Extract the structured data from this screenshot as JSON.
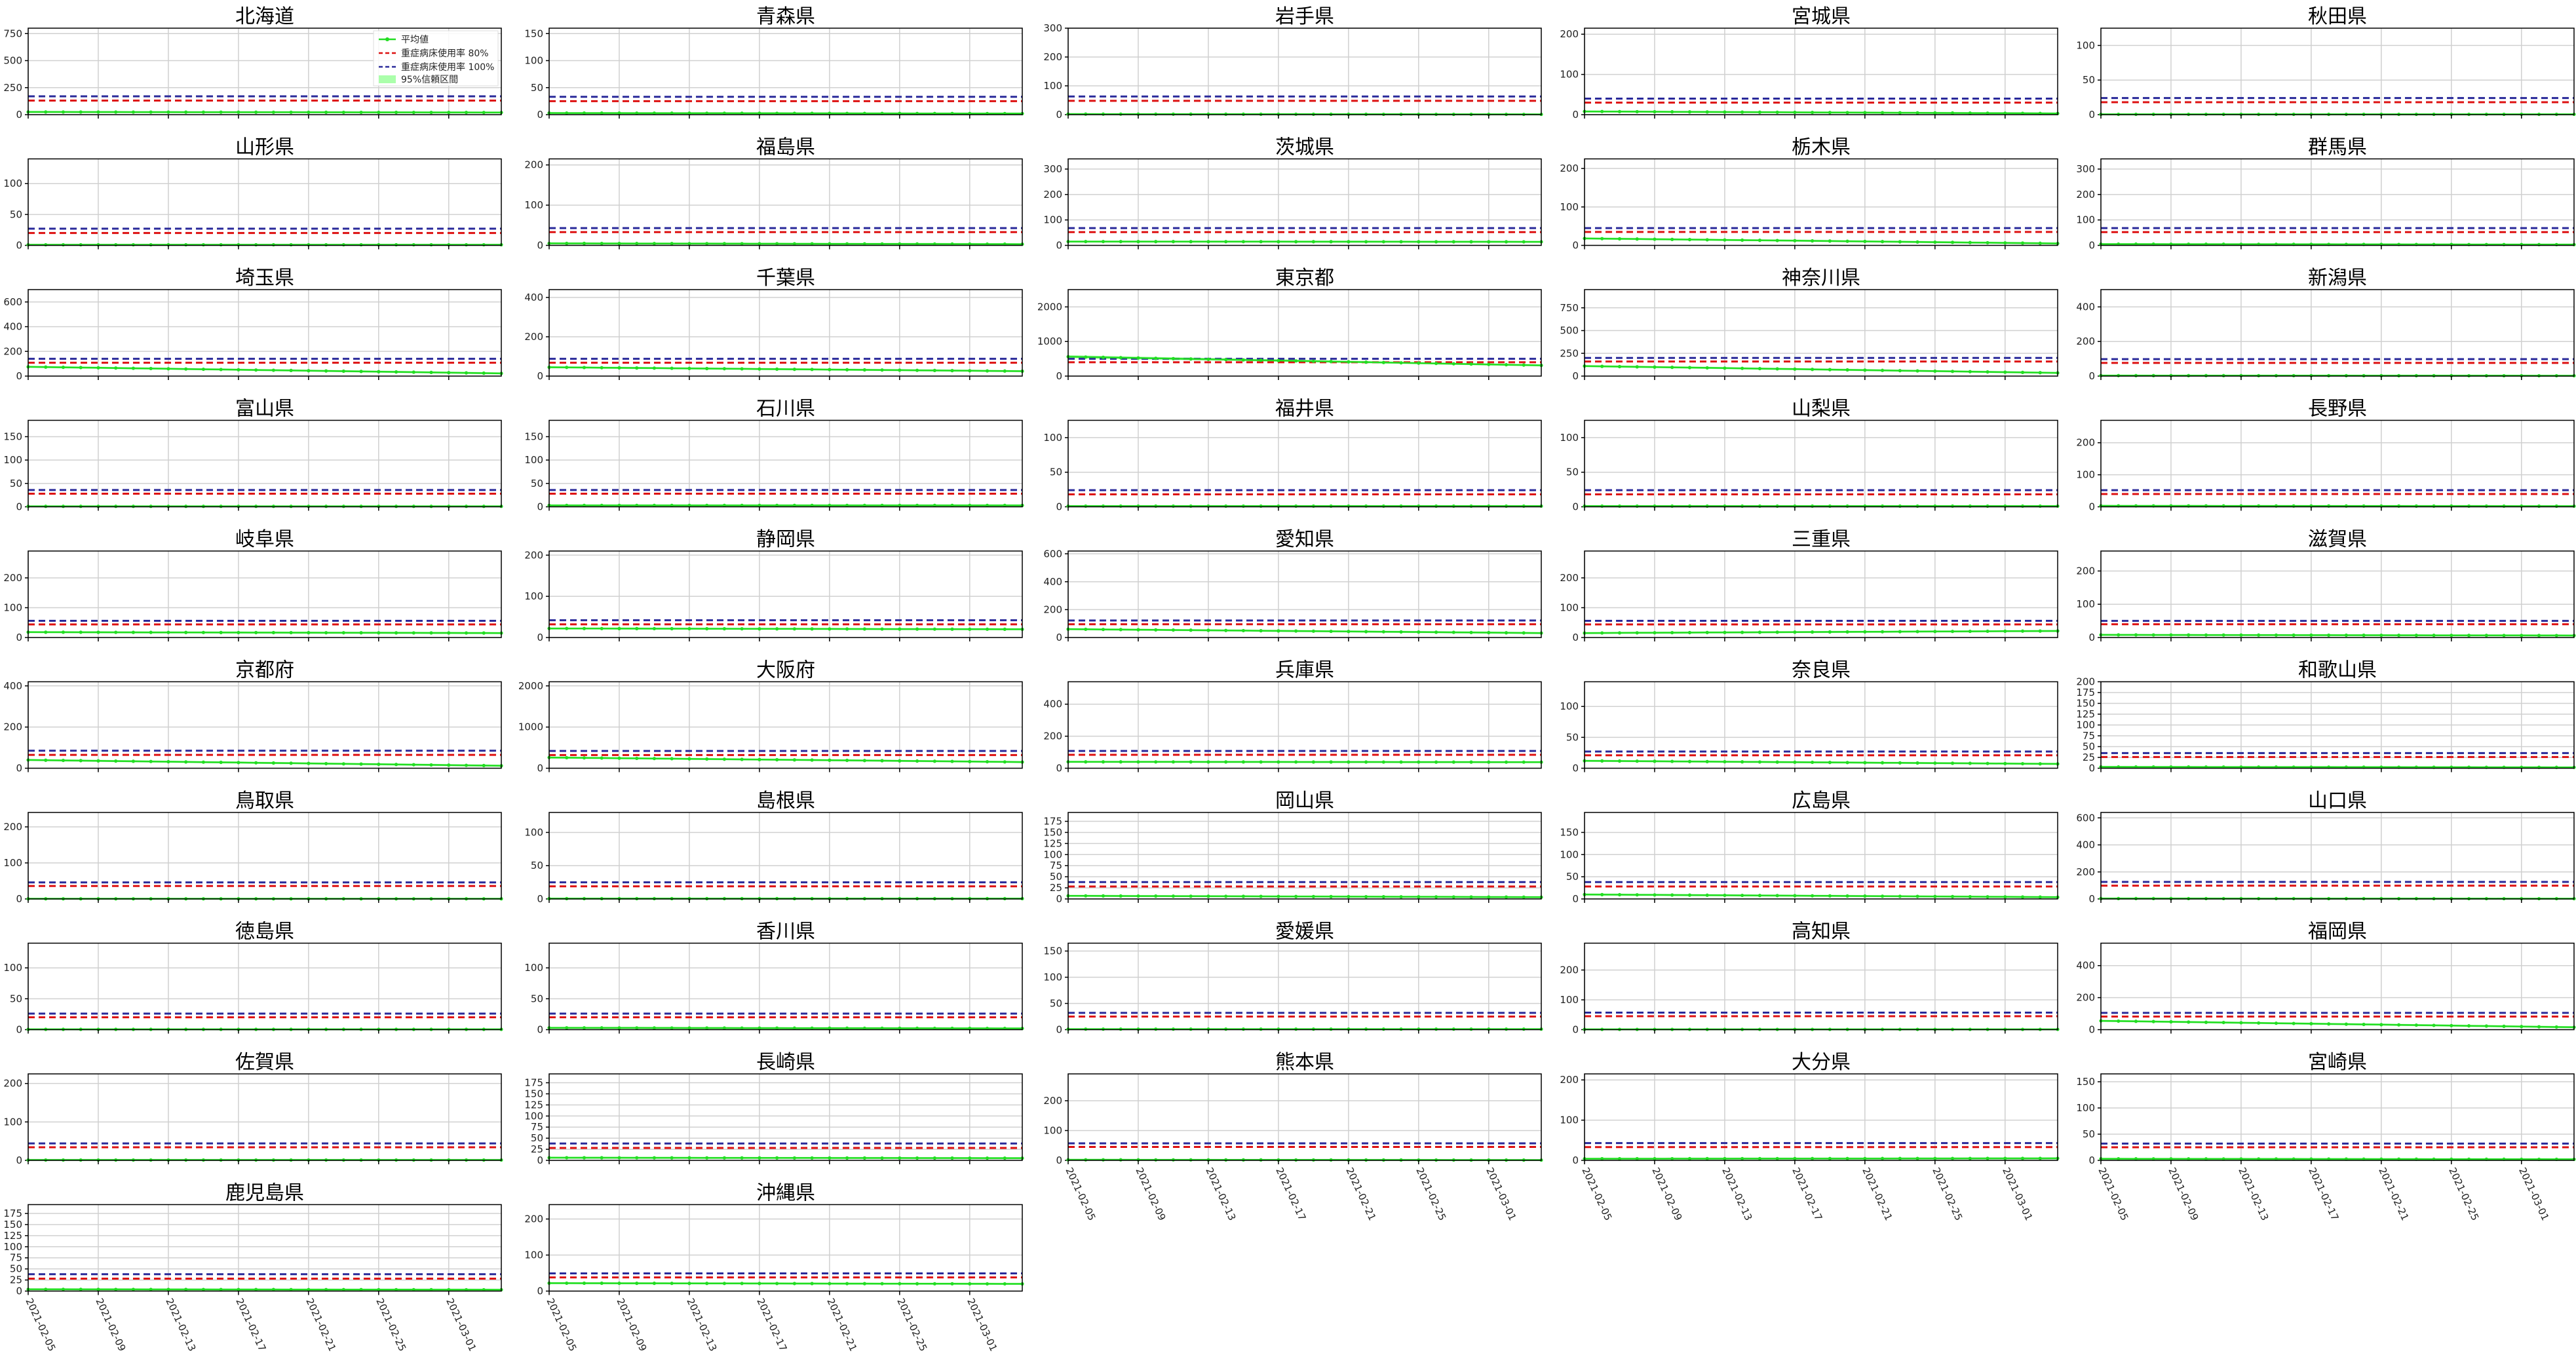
{
  "chart_data": {
    "type": "line",
    "layout": "small-multiples-grid",
    "x_dates": [
      "2021-02-05",
      "2021-02-06",
      "2021-02-07",
      "2021-02-08",
      "2021-02-09",
      "2021-02-10",
      "2021-02-11",
      "2021-02-12",
      "2021-02-13",
      "2021-02-14",
      "2021-02-15",
      "2021-02-16",
      "2021-02-17",
      "2021-02-18",
      "2021-02-19",
      "2021-02-20",
      "2021-02-21",
      "2021-02-22",
      "2021-02-23",
      "2021-02-24",
      "2021-02-25",
      "2021-02-26",
      "2021-02-27",
      "2021-02-28",
      "2021-03-01",
      "2021-03-02",
      "2021-03-03",
      "2021-03-04"
    ],
    "x_tick_labels": [
      "2021-02-05",
      "2021-02-09",
      "2021-02-13",
      "2021-02-17",
      "2021-02-21",
      "2021-02-25",
      "2021-03-01"
    ],
    "legend": {
      "placement": "top-right of first panel",
      "entries": [
        "平均値",
        "重症病床使用率 80%",
        "重症病床使用率 100%",
        "95%信頼区間"
      ]
    },
    "colors": {
      "mean_line": "#22dd22",
      "ci_band": "#88ff88",
      "threshold_80": "#dd1111",
      "threshold_100": "#2a2a9a",
      "grid": "#d0d0d0",
      "axes": "#000000"
    },
    "grid": true,
    "panels": [
      {
        "name": "北海道",
        "ymax": 800,
        "yticks": [
          0,
          250,
          500,
          750
        ],
        "cap80": 130,
        "cap100": 170,
        "start": 25,
        "end": 20
      },
      {
        "name": "青森県",
        "ymax": 160,
        "yticks": [
          0,
          50,
          100,
          150
        ],
        "cap80": 25,
        "cap100": 33,
        "start": 3,
        "end": 2
      },
      {
        "name": "岩手県",
        "ymax": 300,
        "yticks": [
          0,
          100,
          200,
          300
        ],
        "cap80": 48,
        "cap100": 63,
        "start": 2,
        "end": 1
      },
      {
        "name": "宮城県",
        "ymax": 215,
        "yticks": [
          0,
          100,
          200
        ],
        "cap80": 30,
        "cap100": 40,
        "start": 8,
        "end": 3
      },
      {
        "name": "秋田県",
        "ymax": 125,
        "yticks": [
          0,
          50,
          100
        ],
        "cap80": 18,
        "cap100": 24,
        "start": 0.5,
        "end": 0.5
      },
      {
        "name": "山形県",
        "ymax": 140,
        "yticks": [
          0,
          50,
          100
        ],
        "cap80": 20,
        "cap100": 27,
        "start": 1,
        "end": 1
      },
      {
        "name": "福島県",
        "ymax": 215,
        "yticks": [
          0,
          100,
          200
        ],
        "cap80": 33,
        "cap100": 43,
        "start": 5,
        "end": 3
      },
      {
        "name": "茨城県",
        "ymax": 340,
        "yticks": [
          0,
          100,
          200,
          300
        ],
        "cap80": 52,
        "cap100": 68,
        "start": 15,
        "end": 14
      },
      {
        "name": "栃木県",
        "ymax": 225,
        "yticks": [
          0,
          100,
          200
        ],
        "cap80": 35,
        "cap100": 45,
        "start": 18,
        "end": 5
      },
      {
        "name": "群馬県",
        "ymax": 340,
        "yticks": [
          0,
          100,
          200,
          300
        ],
        "cap80": 52,
        "cap100": 68,
        "start": 5,
        "end": 3
      },
      {
        "name": "埼玉県",
        "ymax": 700,
        "yticks": [
          0,
          200,
          400,
          600
        ],
        "cap80": 108,
        "cap100": 140,
        "start": 75,
        "end": 22
      },
      {
        "name": "千葉県",
        "ymax": 440,
        "yticks": [
          0,
          200,
          400
        ],
        "cap80": 68,
        "cap100": 88,
        "start": 45,
        "end": 25
      },
      {
        "name": "東京都",
        "ymax": 2500,
        "yticks": [
          0,
          1000,
          2000
        ],
        "cap80": 400,
        "cap100": 500,
        "start": 560,
        "end": 310
      },
      {
        "name": "神奈川県",
        "ymax": 950,
        "yticks": [
          0,
          250,
          500,
          750
        ],
        "cap80": 160,
        "cap100": 200,
        "start": 110,
        "end": 35
      },
      {
        "name": "新潟県",
        "ymax": 500,
        "yticks": [
          0,
          200,
          400
        ],
        "cap80": 76,
        "cap100": 98,
        "start": 3,
        "end": 2
      },
      {
        "name": "富山県",
        "ymax": 185,
        "yticks": [
          0,
          50,
          100,
          150
        ],
        "cap80": 28,
        "cap100": 36,
        "start": 1,
        "end": 1
      },
      {
        "name": "石川県",
        "ymax": 185,
        "yticks": [
          0,
          50,
          100,
          150
        ],
        "cap80": 28,
        "cap100": 36,
        "start": 3,
        "end": 3
      },
      {
        "name": "福井県",
        "ymax": 125,
        "yticks": [
          0,
          50,
          100
        ],
        "cap80": 18,
        "cap100": 24,
        "start": 1,
        "end": 1
      },
      {
        "name": "山梨県",
        "ymax": 125,
        "yticks": [
          0,
          50,
          100
        ],
        "cap80": 18,
        "cap100": 24,
        "start": 1,
        "end": 1
      },
      {
        "name": "長野県",
        "ymax": 270,
        "yticks": [
          0,
          100,
          200
        ],
        "cap80": 40,
        "cap100": 52,
        "start": 3,
        "end": 2
      },
      {
        "name": "岐阜県",
        "ymax": 290,
        "yticks": [
          0,
          100,
          200
        ],
        "cap80": 44,
        "cap100": 56,
        "start": 18,
        "end": 15
      },
      {
        "name": "静岡県",
        "ymax": 210,
        "yticks": [
          0,
          100,
          200
        ],
        "cap80": 32,
        "cap100": 42,
        "start": 22,
        "end": 20
      },
      {
        "name": "愛知県",
        "ymax": 620,
        "yticks": [
          0,
          200,
          400,
          600
        ],
        "cap80": 95,
        "cap100": 122,
        "start": 60,
        "end": 32
      },
      {
        "name": "三重県",
        "ymax": 290,
        "yticks": [
          0,
          100,
          200
        ],
        "cap80": 44,
        "cap100": 56,
        "start": 15,
        "end": 22
      },
      {
        "name": "滋賀県",
        "ymax": 260,
        "yticks": [
          0,
          100,
          200
        ],
        "cap80": 40,
        "cap100": 50,
        "start": 8,
        "end": 6
      },
      {
        "name": "京都府",
        "ymax": 420,
        "yticks": [
          0,
          200,
          400
        ],
        "cap80": 65,
        "cap100": 85,
        "start": 40,
        "end": 12
      },
      {
        "name": "大阪府",
        "ymax": 2100,
        "yticks": [
          0,
          1000,
          2000
        ],
        "cap80": 320,
        "cap100": 420,
        "start": 260,
        "end": 150
      },
      {
        "name": "兵庫県",
        "ymax": 540,
        "yticks": [
          0,
          200,
          400
        ],
        "cap80": 84,
        "cap100": 108,
        "start": 40,
        "end": 38
      },
      {
        "name": "奈良県",
        "ymax": 140,
        "yticks": [
          0,
          50,
          100
        ],
        "cap80": 21,
        "cap100": 27,
        "start": 12,
        "end": 7
      },
      {
        "name": "和歌山県",
        "ymax": 200,
        "yticks": [
          0,
          25,
          50,
          75,
          100,
          125,
          150,
          175,
          200
        ],
        "cap80": 26,
        "cap100": 35,
        "start": 3,
        "end": 2
      },
      {
        "name": "鳥取県",
        "ymax": 240,
        "yticks": [
          0,
          100,
          200
        ],
        "cap80": 36,
        "cap100": 46,
        "start": 0.5,
        "end": 0.5
      },
      {
        "name": "島根県",
        "ymax": 130,
        "yticks": [
          0,
          50,
          100
        ],
        "cap80": 19,
        "cap100": 25,
        "start": 0.5,
        "end": 0.5
      },
      {
        "name": "岡山県",
        "ymax": 195,
        "yticks": [
          0,
          25,
          50,
          75,
          100,
          125,
          150,
          175
        ],
        "cap80": 28,
        "cap100": 38,
        "start": 7,
        "end": 4
      },
      {
        "name": "広島県",
        "ymax": 195,
        "yticks": [
          0,
          50,
          100,
          150
        ],
        "cap80": 28,
        "cap100": 38,
        "start": 10,
        "end": 4
      },
      {
        "name": "山口県",
        "ymax": 640,
        "yticks": [
          0,
          200,
          400,
          600
        ],
        "cap80": 98,
        "cap100": 126,
        "start": 3,
        "end": 2
      },
      {
        "name": "徳島県",
        "ymax": 140,
        "yticks": [
          0,
          50,
          100
        ],
        "cap80": 20,
        "cap100": 26,
        "start": 0.5,
        "end": 0.5
      },
      {
        "name": "香川県",
        "ymax": 140,
        "yticks": [
          0,
          50,
          100
        ],
        "cap80": 20,
        "cap100": 26,
        "start": 3,
        "end": 2
      },
      {
        "name": "愛媛県",
        "ymax": 165,
        "yticks": [
          0,
          50,
          100,
          150
        ],
        "cap80": 25,
        "cap100": 32,
        "start": 1,
        "end": 1
      },
      {
        "name": "高知県",
        "ymax": 290,
        "yticks": [
          0,
          100,
          200
        ],
        "cap80": 45,
        "cap100": 57,
        "start": 1,
        "end": 1
      },
      {
        "name": "福岡県",
        "ymax": 540,
        "yticks": [
          0,
          200,
          400
        ],
        "cap80": 82,
        "cap100": 105,
        "start": 55,
        "end": 15
      },
      {
        "name": "佐賀県",
        "ymax": 225,
        "yticks": [
          0,
          100,
          200
        ],
        "cap80": 34,
        "cap100": 44,
        "start": 1,
        "end": 1
      },
      {
        "name": "長崎県",
        "ymax": 195,
        "yticks": [
          0,
          25,
          50,
          75,
          100,
          125,
          150,
          175
        ],
        "cap80": 28,
        "cap100": 38,
        "start": 6,
        "end": 5
      },
      {
        "name": "熊本県",
        "ymax": 290,
        "yticks": [
          0,
          100,
          200
        ],
        "cap80": 45,
        "cap100": 57,
        "start": 2,
        "end": 1
      },
      {
        "name": "大分県",
        "ymax": 215,
        "yticks": [
          0,
          100,
          200
        ],
        "cap80": 33,
        "cap100": 43,
        "start": 4,
        "end": 5
      },
      {
        "name": "宮崎県",
        "ymax": 165,
        "yticks": [
          0,
          50,
          100,
          150
        ],
        "cap80": 25,
        "cap100": 32,
        "start": 3,
        "end": 2
      },
      {
        "name": "鹿児島県",
        "ymax": 195,
        "yticks": [
          0,
          25,
          50,
          75,
          100,
          125,
          150,
          175
        ],
        "cap80": 28,
        "cap100": 38,
        "start": 4,
        "end": 3
      },
      {
        "name": "沖縄県",
        "ymax": 240,
        "yticks": [
          0,
          100,
          200
        ],
        "cap80": 38,
        "cap100": 49,
        "start": 22,
        "end": 20
      }
    ]
  }
}
